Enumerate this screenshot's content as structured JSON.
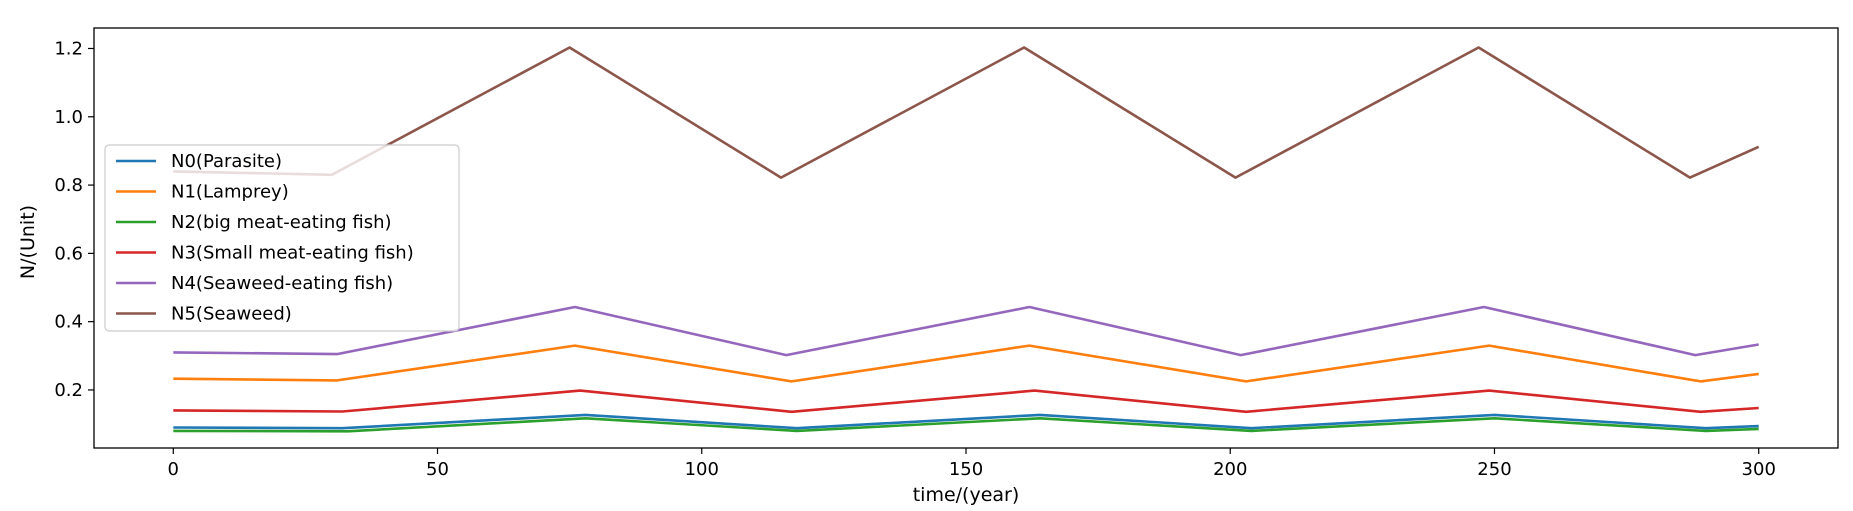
{
  "chart_data": {
    "type": "line",
    "title": "",
    "xlabel": "time/(year)",
    "ylabel": "N/(Unit)",
    "xlim": [
      -15,
      315
    ],
    "ylim": [
      0.03,
      1.26
    ],
    "xticks": [
      0,
      50,
      100,
      150,
      200,
      250,
      300
    ],
    "yticks": [
      0.2,
      0.4,
      0.6,
      0.8,
      1.0,
      1.2
    ],
    "grid": false,
    "legend_position": "center-left",
    "series": [
      {
        "name": "N0(Parasite)",
        "color": "#1f77b4",
        "points": [
          [
            0,
            0.09
          ],
          [
            32,
            0.088
          ],
          [
            78,
            0.127
          ],
          [
            118,
            0.088
          ],
          [
            164,
            0.127
          ],
          [
            204,
            0.088
          ],
          [
            250,
            0.127
          ],
          [
            290,
            0.088
          ],
          [
            300,
            0.094
          ]
        ]
      },
      {
        "name": "N1(Lamprey)",
        "color": "#ff7f0e",
        "points": [
          [
            0,
            0.233
          ],
          [
            31,
            0.228
          ],
          [
            76,
            0.33
          ],
          [
            117,
            0.225
          ],
          [
            162,
            0.33
          ],
          [
            203,
            0.225
          ],
          [
            249,
            0.33
          ],
          [
            289,
            0.225
          ],
          [
            300,
            0.247
          ]
        ]
      },
      {
        "name": "N2(big meat-eating fish)",
        "color": "#2ca02c",
        "points": [
          [
            0,
            0.08
          ],
          [
            33,
            0.079
          ],
          [
            78,
            0.117
          ],
          [
            118,
            0.08
          ],
          [
            164,
            0.117
          ],
          [
            204,
            0.08
          ],
          [
            250,
            0.117
          ],
          [
            290,
            0.08
          ],
          [
            300,
            0.086
          ]
        ]
      },
      {
        "name": "N3(Small meat-eating fish)",
        "color": "#d62728",
        "points": [
          [
            0,
            0.14
          ],
          [
            32,
            0.137
          ],
          [
            77,
            0.198
          ],
          [
            117,
            0.136
          ],
          [
            163,
            0.198
          ],
          [
            203,
            0.136
          ],
          [
            249,
            0.198
          ],
          [
            289,
            0.136
          ],
          [
            300,
            0.147
          ]
        ]
      },
      {
        "name": "N4(Seaweed-eating fish)",
        "color": "#9467bd",
        "points": [
          [
            0,
            0.31
          ],
          [
            31,
            0.305
          ],
          [
            76,
            0.443
          ],
          [
            116,
            0.302
          ],
          [
            162,
            0.443
          ],
          [
            202,
            0.302
          ],
          [
            248,
            0.443
          ],
          [
            288,
            0.302
          ],
          [
            300,
            0.333
          ]
        ]
      },
      {
        "name": "N5(Seaweed)",
        "color": "#8c564b",
        "points": [
          [
            0,
            0.84
          ],
          [
            30,
            0.83
          ],
          [
            75,
            1.203
          ],
          [
            115,
            0.822
          ],
          [
            161,
            1.203
          ],
          [
            201,
            0.822
          ],
          [
            247,
            1.203
          ],
          [
            287,
            0.822
          ],
          [
            300,
            0.912
          ]
        ]
      }
    ]
  }
}
